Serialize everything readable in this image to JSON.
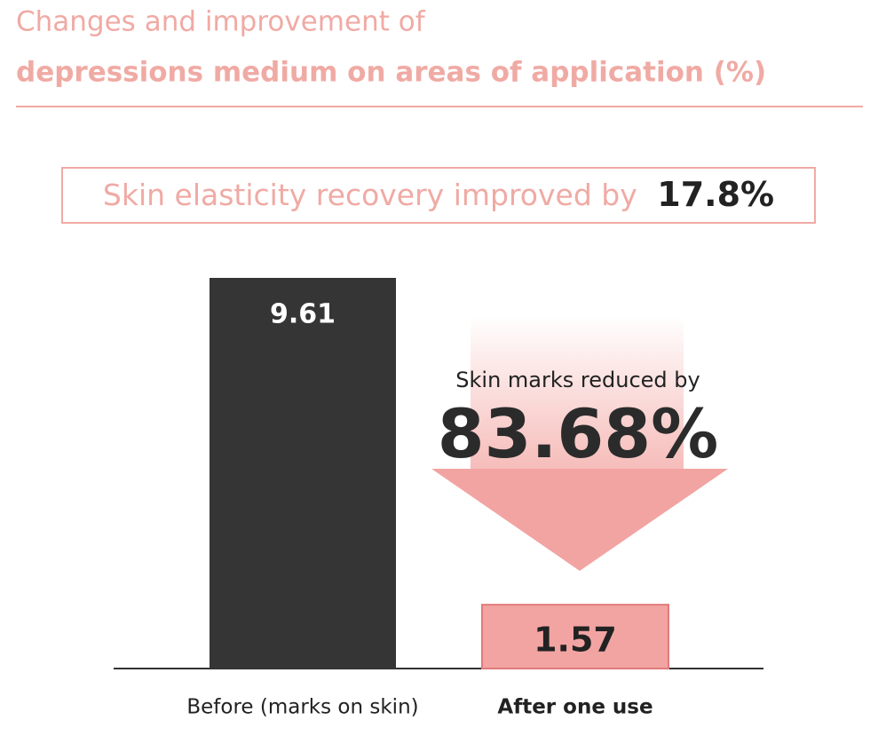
{
  "chart_data": {
    "type": "bar",
    "title": "Changes and improvement of",
    "subtitle": "depressions medium on areas of application (%)",
    "banner": {
      "text": "Skin elasticity recovery improved by",
      "highlight": "17.8%"
    },
    "annotation": {
      "text": "Skin marks reduced by",
      "highlight": "83.68%"
    },
    "categories": [
      "Before (marks on skin)",
      "After one use"
    ],
    "values": [
      9.61,
      1.57
    ],
    "colors": [
      "#353535",
      "#f2a4a2"
    ],
    "accent_color": "#f0aaa4"
  }
}
